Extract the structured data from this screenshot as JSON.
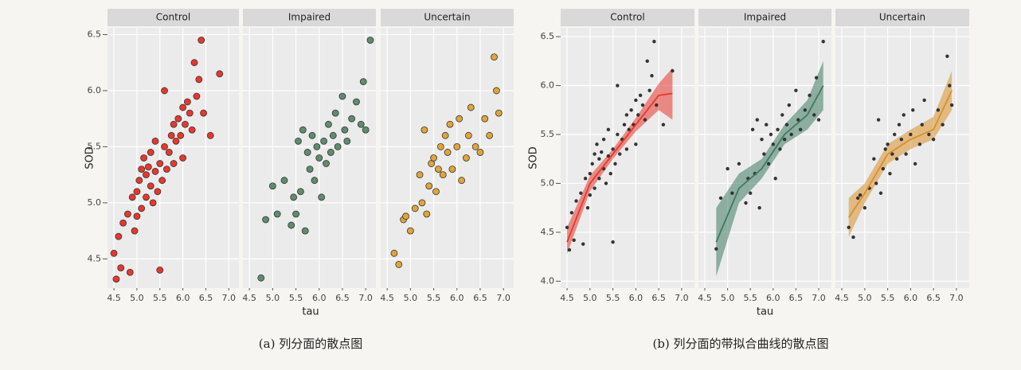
{
  "chart_data": [
    {
      "type": "scatter",
      "caption": "(a) 列分面的散点图",
      "xlabel": "tau",
      "ylabel": "SOD",
      "xlim": [
        4.36,
        7.22
      ],
      "ylim": [
        4.24,
        6.56
      ],
      "xticks": [
        4.5,
        {
          "value": 5,
          "label": "5.0"
        },
        5.5,
        {
          "value": 6,
          "label": "6.0"
        },
        6.5,
        {
          "value": 7,
          "label": "7.0"
        }
      ],
      "yticks": [
        4.5,
        {
          "value": 5,
          "label": "5.0"
        },
        5.5,
        {
          "value": 6,
          "label": "6.0"
        },
        6.5
      ],
      "grid": true,
      "panels": [
        {
          "title": "Control",
          "color": "#e8372d",
          "x": [
            4.5,
            4.55,
            4.6,
            4.65,
            4.7,
            4.8,
            4.85,
            4.9,
            4.95,
            5.0,
            5.0,
            5.05,
            5.1,
            5.1,
            5.15,
            5.2,
            5.2,
            5.25,
            5.3,
            5.3,
            5.35,
            5.4,
            5.4,
            5.45,
            5.5,
            5.5,
            5.55,
            5.6,
            5.6,
            5.65,
            5.7,
            5.75,
            5.8,
            5.8,
            5.85,
            5.9,
            5.95,
            6.0,
            6.0,
            6.05,
            6.1,
            6.15,
            6.2,
            6.25,
            6.3,
            6.35,
            6.4,
            6.45,
            6.6,
            6.8
          ],
          "y": [
            4.55,
            4.32,
            4.7,
            4.42,
            4.82,
            4.9,
            4.38,
            5.05,
            4.75,
            5.1,
            4.88,
            5.2,
            4.95,
            5.3,
            5.4,
            5.05,
            5.25,
            5.32,
            5.15,
            5.45,
            5.0,
            5.28,
            5.55,
            5.1,
            5.35,
            4.4,
            5.2,
            5.5,
            6.0,
            5.3,
            5.45,
            5.6,
            5.7,
            5.35,
            5.55,
            5.75,
            5.6,
            5.85,
            5.4,
            5.7,
            5.9,
            5.8,
            5.65,
            6.25,
            5.95,
            6.1,
            6.45,
            5.8,
            5.6,
            6.15
          ]
        },
        {
          "title": "Impaired",
          "color": "#5f8c6e",
          "x": [
            4.75,
            4.85,
            5.0,
            5.1,
            5.25,
            5.4,
            5.45,
            5.5,
            5.55,
            5.6,
            5.65,
            5.7,
            5.75,
            5.8,
            5.85,
            5.9,
            5.95,
            6.0,
            6.05,
            6.1,
            6.15,
            6.2,
            6.25,
            6.3,
            6.35,
            6.4,
            6.5,
            6.55,
            6.6,
            6.7,
            6.8,
            6.9,
            6.95,
            7.0,
            7.1
          ],
          "y": [
            4.33,
            4.85,
            5.15,
            4.9,
            5.2,
            4.8,
            5.05,
            4.9,
            5.55,
            5.1,
            5.65,
            4.75,
            5.45,
            5.3,
            5.6,
            5.2,
            5.5,
            5.4,
            5.05,
            5.55,
            5.35,
            5.7,
            5.45,
            5.6,
            5.8,
            5.5,
            5.95,
            5.65,
            5.55,
            5.75,
            5.9,
            5.7,
            6.08,
            5.65,
            6.45
          ]
        },
        {
          "title": "Uncertain",
          "color": "#e0a53a",
          "x": [
            4.65,
            4.75,
            4.85,
            4.9,
            5.0,
            5.1,
            5.2,
            5.25,
            5.3,
            5.35,
            5.4,
            5.45,
            5.5,
            5.55,
            5.6,
            5.65,
            5.7,
            5.75,
            5.8,
            5.85,
            5.9,
            6.0,
            6.05,
            6.1,
            6.2,
            6.25,
            6.3,
            6.4,
            6.5,
            6.6,
            6.7,
            6.8,
            6.85,
            6.9
          ],
          "y": [
            4.55,
            4.45,
            4.85,
            4.88,
            4.75,
            4.95,
            5.25,
            5.0,
            5.65,
            4.9,
            5.15,
            5.35,
            5.4,
            5.1,
            5.3,
            5.5,
            5.25,
            5.6,
            5.45,
            5.7,
            5.3,
            5.5,
            5.75,
            5.2,
            5.4,
            5.6,
            5.85,
            5.5,
            5.45,
            5.75,
            5.6,
            6.3,
            6.0,
            5.8
          ]
        }
      ]
    },
    {
      "type": "scatter",
      "caption": "(b) 列分面的带拟合曲线的散点图",
      "xlabel": "tau",
      "ylabel": "SOD",
      "xlim": [
        4.36,
        7.28
      ],
      "ylim": [
        3.93,
        6.59
      ],
      "xticks": [
        4.5,
        {
          "value": 5,
          "label": "5.0"
        },
        5.5,
        {
          "value": 6,
          "label": "6.0"
        },
        6.5,
        {
          "value": 7,
          "label": "7.0"
        }
      ],
      "yticks": [
        {
          "value": 4,
          "label": "4.0"
        },
        4.5,
        {
          "value": 5,
          "label": "5.0"
        },
        5.5,
        {
          "value": 6,
          "label": "6.0"
        },
        6.5
      ],
      "grid": true,
      "panels": [
        {
          "title": "Control",
          "color": "#333333",
          "x": [
            4.5,
            4.55,
            4.6,
            4.65,
            4.7,
            4.8,
            4.85,
            4.9,
            4.95,
            5.0,
            5.0,
            5.05,
            5.1,
            5.1,
            5.15,
            5.2,
            5.2,
            5.25,
            5.3,
            5.3,
            5.35,
            5.4,
            5.4,
            5.45,
            5.5,
            5.5,
            5.55,
            5.6,
            5.6,
            5.65,
            5.7,
            5.75,
            5.8,
            5.8,
            5.85,
            5.9,
            5.95,
            6.0,
            6.0,
            6.05,
            6.1,
            6.15,
            6.2,
            6.25,
            6.3,
            6.35,
            6.4,
            6.45,
            6.6,
            6.8
          ],
          "y": [
            4.55,
            4.32,
            4.7,
            4.42,
            4.82,
            4.9,
            4.38,
            5.05,
            4.75,
            5.1,
            4.88,
            5.2,
            4.95,
            5.3,
            5.4,
            5.05,
            5.25,
            5.32,
            5.15,
            5.45,
            5.0,
            5.28,
            5.55,
            5.1,
            5.35,
            4.4,
            5.2,
            5.5,
            6.0,
            5.3,
            5.45,
            5.6,
            5.7,
            5.35,
            5.55,
            5.75,
            5.6,
            5.85,
            5.4,
            5.7,
            5.9,
            5.8,
            5.65,
            6.25,
            5.95,
            6.1,
            6.45,
            5.8,
            5.6,
            6.15
          ],
          "fit": {
            "color": "#e8372d",
            "x": [
              4.5,
              5.0,
              5.5,
              6.0,
              6.5,
              6.8
            ],
            "y": [
              4.4,
              5.0,
              5.3,
              5.6,
              5.9,
              5.92
            ],
            "lower": [
              4.28,
              4.92,
              5.25,
              5.53,
              5.75,
              5.65
            ],
            "upper": [
              4.55,
              5.08,
              5.35,
              5.67,
              6.02,
              6.18
            ]
          }
        },
        {
          "title": "Impaired",
          "color": "#333333",
          "x": [
            4.75,
            4.85,
            5.0,
            5.1,
            5.25,
            5.4,
            5.45,
            5.5,
            5.55,
            5.6,
            5.65,
            5.7,
            5.75,
            5.8,
            5.85,
            5.9,
            5.95,
            6.0,
            6.05,
            6.1,
            6.15,
            6.2,
            6.25,
            6.3,
            6.35,
            6.4,
            6.5,
            6.55,
            6.6,
            6.7,
            6.8,
            6.9,
            6.95,
            7.0,
            7.1
          ],
          "y": [
            4.33,
            4.85,
            5.15,
            4.9,
            5.2,
            4.8,
            5.05,
            4.9,
            5.55,
            5.1,
            5.65,
            4.75,
            5.45,
            5.3,
            5.6,
            5.2,
            5.5,
            5.4,
            5.05,
            5.55,
            5.35,
            5.7,
            5.45,
            5.6,
            5.8,
            5.5,
            5.95,
            5.65,
            5.55,
            5.75,
            5.9,
            5.7,
            6.08,
            5.65,
            6.45
          ],
          "fit": {
            "color": "#3e7a60",
            "x": [
              4.75,
              5.25,
              5.75,
              6.25,
              6.75,
              7.1
            ],
            "y": [
              4.4,
              4.95,
              5.15,
              5.5,
              5.7,
              6.0
            ],
            "lower": [
              4.05,
              4.8,
              5.05,
              5.4,
              5.55,
              5.75
            ],
            "upper": [
              4.75,
              5.1,
              5.25,
              5.6,
              5.85,
              6.25
            ]
          }
        },
        {
          "title": "Uncertain",
          "color": "#333333",
          "x": [
            4.65,
            4.75,
            4.85,
            4.9,
            5.0,
            5.1,
            5.2,
            5.25,
            5.3,
            5.35,
            5.4,
            5.45,
            5.5,
            5.55,
            5.6,
            5.65,
            5.7,
            5.75,
            5.8,
            5.85,
            5.9,
            6.0,
            6.05,
            6.1,
            6.2,
            6.25,
            6.3,
            6.4,
            6.5,
            6.6,
            6.7,
            6.8,
            6.85,
            6.9
          ],
          "y": [
            4.55,
            4.45,
            4.85,
            4.88,
            4.75,
            4.95,
            5.25,
            5.0,
            5.65,
            4.9,
            5.15,
            5.35,
            5.4,
            5.1,
            5.3,
            5.5,
            5.25,
            5.6,
            5.45,
            5.7,
            5.3,
            5.5,
            5.75,
            5.2,
            5.4,
            5.6,
            5.85,
            5.5,
            5.45,
            5.75,
            5.6,
            6.3,
            6.0,
            5.8
          ],
          "fit": {
            "color": "#d8902a",
            "x": [
              4.65,
              5.0,
              5.5,
              6.0,
              6.5,
              6.9
            ],
            "y": [
              4.65,
              4.9,
              5.3,
              5.45,
              5.55,
              5.95
            ],
            "lower": [
              4.45,
              4.8,
              5.2,
              5.35,
              5.45,
              5.75
            ],
            "upper": [
              4.85,
              5.0,
              5.4,
              5.55,
              5.68,
              6.15
            ]
          }
        }
      ]
    }
  ]
}
